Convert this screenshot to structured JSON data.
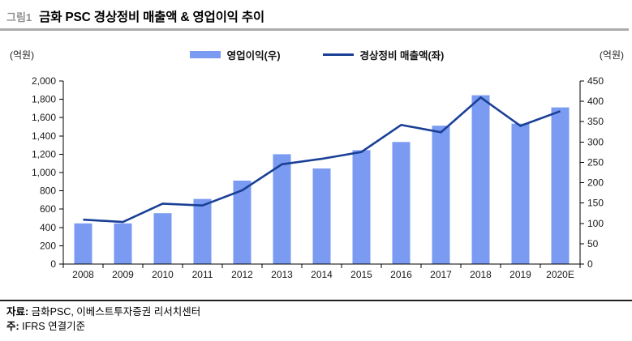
{
  "figure": {
    "tag": "그림1",
    "title": "금화 PSC 경상정비 매출액 & 영업이익 추이"
  },
  "chart_data": {
    "type": "combo",
    "title": "금화 PSC 경상정비 매출액 & 영업이익 추이",
    "categories": [
      "2008",
      "2009",
      "2010",
      "2011",
      "2012",
      "2013",
      "2014",
      "2015",
      "2016",
      "2017",
      "2018",
      "2019",
      "2020E"
    ],
    "series": [
      {
        "name": "영업이익(우)",
        "type": "bar",
        "axis": "right",
        "color": "#7b9bf2",
        "values": [
          100,
          100,
          125,
          160,
          205,
          270,
          235,
          280,
          300,
          340,
          415,
          345,
          385
        ]
      },
      {
        "name": "경상정비 매출액(좌)",
        "type": "line",
        "axis": "left",
        "color": "#1a4096",
        "values": [
          485,
          460,
          660,
          640,
          805,
          1090,
          1150,
          1225,
          1520,
          1440,
          1820,
          1510,
          1670
        ]
      }
    ],
    "left_axis": {
      "label": "(억원)",
      "min": 0,
      "max": 2000,
      "step": 200,
      "ticks": [
        "0",
        "200",
        "400",
        "600",
        "800",
        "1,000",
        "1,200",
        "1,400",
        "1,600",
        "1,800",
        "2,000"
      ]
    },
    "right_axis": {
      "label": "(억원)",
      "min": 0,
      "max": 450,
      "step": 50,
      "ticks": [
        "0",
        "50",
        "100",
        "150",
        "200",
        "250",
        "300",
        "350",
        "400",
        "450"
      ]
    },
    "legend_position": "top",
    "grid": false
  },
  "footer": {
    "source_label": "자료:",
    "source": "금화PSC, 이베스트투자증권 리서치센터",
    "note_label": "주:",
    "note": "IFRS 연결기준"
  }
}
